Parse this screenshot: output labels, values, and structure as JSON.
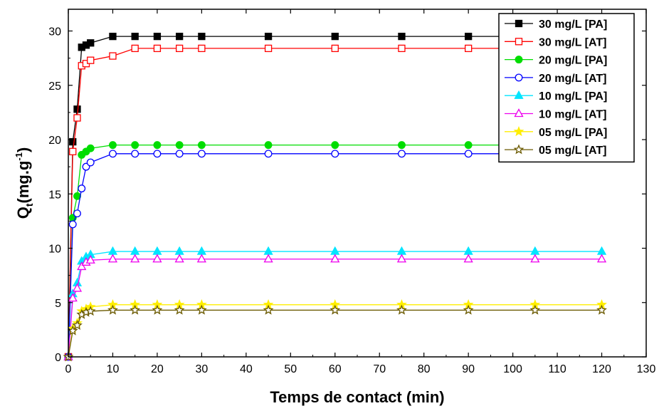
{
  "chart_data": {
    "type": "line",
    "xlabel": "Temps de contact (min)",
    "ylabel_main": "Q",
    "ylabel_sub": "t",
    "ylabel_rest": "(mg.g",
    "ylabel_sup": "-1",
    "ylabel_close": ")",
    "xlim": [
      0,
      130
    ],
    "ylim": [
      0,
      32
    ],
    "xticks": [
      0,
      10,
      20,
      30,
      40,
      50,
      60,
      70,
      80,
      90,
      100,
      110,
      120,
      130
    ],
    "yticks": [
      0,
      5,
      10,
      15,
      20,
      25,
      30
    ],
    "grid": false,
    "legend_position": "top-right",
    "x": [
      0,
      1,
      2,
      3,
      4,
      5,
      10,
      15,
      20,
      25,
      30,
      45,
      60,
      75,
      90,
      105,
      120
    ],
    "series": [
      {
        "name": "30 mg/L [PA]",
        "color": "#000000",
        "marker": "square",
        "filled": true,
        "values": [
          0,
          19.8,
          22.8,
          28.5,
          28.7,
          28.9,
          29.5,
          29.5,
          29.5,
          29.5,
          29.5,
          29.5,
          29.5,
          29.5,
          29.5,
          29.5,
          29.5
        ]
      },
      {
        "name": "30 mg/L [AT]",
        "color": "#ff0000",
        "marker": "square",
        "filled": false,
        "values": [
          0,
          18.9,
          22.0,
          26.8,
          27.0,
          27.3,
          27.7,
          28.4,
          28.4,
          28.4,
          28.4,
          28.4,
          28.4,
          28.4,
          28.4,
          28.4,
          28.4
        ]
      },
      {
        "name": "20 mg/L [PA]",
        "color": "#00dd00",
        "marker": "circle",
        "filled": true,
        "values": [
          0,
          12.8,
          14.8,
          18.6,
          18.9,
          19.2,
          19.5,
          19.5,
          19.5,
          19.5,
          19.5,
          19.5,
          19.5,
          19.5,
          19.5,
          19.5,
          19.5
        ]
      },
      {
        "name": "20 mg/L [AT]",
        "color": "#0000ff",
        "marker": "circle",
        "filled": false,
        "values": [
          0,
          12.2,
          13.2,
          15.5,
          17.5,
          17.9,
          18.7,
          18.7,
          18.7,
          18.7,
          18.7,
          18.7,
          18.7,
          18.7,
          18.7,
          18.7,
          18.7
        ]
      },
      {
        "name": "10 mg/L [PA]",
        "color": "#00e5ff",
        "marker": "triangle",
        "filled": true,
        "values": [
          0,
          5.8,
          6.8,
          8.8,
          9.2,
          9.4,
          9.7,
          9.7,
          9.7,
          9.7,
          9.7,
          9.7,
          9.7,
          9.7,
          9.7,
          9.7,
          9.7
        ]
      },
      {
        "name": "10 mg/L [AT]",
        "color": "#ee00ee",
        "marker": "triangle",
        "filled": false,
        "values": [
          0,
          5.4,
          6.3,
          8.3,
          8.7,
          8.9,
          9.0,
          9.0,
          9.0,
          9.0,
          9.0,
          9.0,
          9.0,
          9.0,
          9.0,
          9.0,
          9.0
        ]
      },
      {
        "name": "05 mg/L [PA]",
        "color": "#ffee00",
        "marker": "star",
        "filled": true,
        "values": [
          0,
          2.6,
          3.1,
          4.2,
          4.4,
          4.6,
          4.8,
          4.8,
          4.8,
          4.8,
          4.8,
          4.8,
          4.8,
          4.8,
          4.8,
          4.8,
          4.8
        ]
      },
      {
        "name": "05 mg/L [AT]",
        "color": "#6b5a00",
        "marker": "star",
        "filled": false,
        "values": [
          0,
          2.4,
          2.9,
          3.9,
          4.1,
          4.2,
          4.3,
          4.3,
          4.3,
          4.3,
          4.3,
          4.3,
          4.3,
          4.3,
          4.3,
          4.3,
          4.3
        ]
      }
    ]
  }
}
